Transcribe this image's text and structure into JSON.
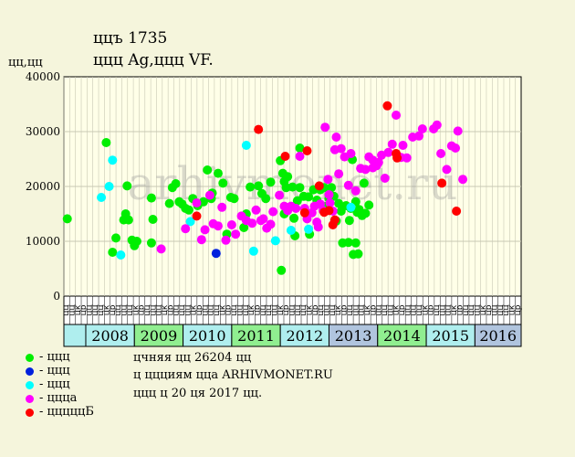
{
  "header": {
    "line1": "ццъ 1735",
    "line2": "ццц Ag,ццц VF."
  },
  "y_unit": "цц,цц",
  "info": [
    "цчняя цц 26204 цц",
    "ц ццциям цца ARHIVMONET.RU",
    "ццц ц 20 ця 2017 цц."
  ],
  "watermark": "arhivmonet.ru",
  "legend": [
    {
      "label": "- ццц",
      "color": "#00ee00"
    },
    {
      "label": "- ццц",
      "color": "#0020dd"
    },
    {
      "label": "- ццц",
      "color": "#00ffff"
    },
    {
      "label": "- цццa",
      "color": "#ff00ff"
    },
    {
      "label": "- цццццБ",
      "color": "#ff0000"
    }
  ],
  "colors": {
    "background": "#f5f5dc",
    "plot_bg": "#ffffe8",
    "grid": "#c8c8b4"
  },
  "chart_data": {
    "type": "scatter",
    "ylim": [
      0,
      40000
    ],
    "yticks": [
      0,
      10000,
      20000,
      30000,
      40000
    ],
    "xlim": [
      2007.55,
      2016.95
    ],
    "grid": true,
    "month_labels": [
      "цц",
      "цц",
      "цк",
      "цр",
      "цц",
      "цц",
      "цц",
      "цк",
      "цр",
      "цц",
      "цц",
      "цц",
      "цк",
      "цр",
      "цц",
      "цц",
      "цц",
      "цк",
      "цр",
      "цц",
      "цц",
      "цц",
      "цк",
      "цр",
      "цц",
      "цц",
      "цц",
      "цк",
      "цр",
      "цц",
      "цц",
      "цц",
      "цк",
      "цр",
      "цц",
      "цц",
      "цц",
      "цк",
      "цр",
      "цц",
      "цц",
      "цц",
      "цк",
      "цр",
      "цц",
      "цц",
      "цц",
      "цк",
      "цр",
      "цц",
      "цц",
      "цц",
      "цк",
      "цр",
      "цц",
      "цц",
      "цц",
      "цк",
      "цр",
      "цц",
      "цц",
      "цц",
      "цк",
      "цр",
      "цц",
      "цц",
      "цц",
      "цк",
      "цр",
      "цц",
      "цц",
      "цц",
      "цк",
      "цр",
      "цц",
      "цц",
      "цц",
      "цк",
      "цр"
    ],
    "years": [
      {
        "label": "2008",
        "start": 2008.0,
        "end": 2009.0,
        "color": "#afeeee"
      },
      {
        "label": "2009",
        "start": 2009.0,
        "end": 2010.0,
        "color": "#90ee90"
      },
      {
        "label": "2010",
        "start": 2010.0,
        "end": 2011.0,
        "color": "#afeeee"
      },
      {
        "label": "2011",
        "start": 2011.0,
        "end": 2012.0,
        "color": "#90ee90"
      },
      {
        "label": "2012",
        "start": 2012.0,
        "end": 2013.0,
        "color": "#afeeee"
      },
      {
        "label": "2013",
        "start": 2013.0,
        "end": 2014.0,
        "color": "#b0c4de"
      },
      {
        "label": "2014",
        "start": 2014.0,
        "end": 2015.0,
        "color": "#90ee90"
      },
      {
        "label": "2015",
        "start": 2015.0,
        "end": 2016.0,
        "color": "#afeeee"
      },
      {
        "label": "2016",
        "start": 2016.0,
        "end": 2017.0,
        "color": "#b0c4de"
      }
    ],
    "series": [
      {
        "color": "#00ee00",
        "points": [
          [
            2007.62,
            14100
          ],
          [
            2008.42,
            28000
          ],
          [
            2008.55,
            8000
          ],
          [
            2008.62,
            10600
          ],
          [
            2008.78,
            13900
          ],
          [
            2008.82,
            15000
          ],
          [
            2008.85,
            20100
          ],
          [
            2008.88,
            13900
          ],
          [
            2008.95,
            10200
          ],
          [
            2009.0,
            9200
          ],
          [
            2009.05,
            10000
          ],
          [
            2009.35,
            17900
          ],
          [
            2009.38,
            14000
          ],
          [
            2009.35,
            9700
          ],
          [
            2009.72,
            16900
          ],
          [
            2009.78,
            19800
          ],
          [
            2009.85,
            20500
          ],
          [
            2009.92,
            17200
          ],
          [
            2009.98,
            16800
          ],
          [
            2010.05,
            16000
          ],
          [
            2010.12,
            15700
          ],
          [
            2010.2,
            17800
          ],
          [
            2010.3,
            16500
          ],
          [
            2010.42,
            17200
          ],
          [
            2010.5,
            23000
          ],
          [
            2010.58,
            17800
          ],
          [
            2010.6,
            18800
          ],
          [
            2010.72,
            22400
          ],
          [
            2010.82,
            20600
          ],
          [
            2010.9,
            11300
          ],
          [
            2010.98,
            18000
          ],
          [
            2011.05,
            17800
          ],
          [
            2011.25,
            12500
          ],
          [
            2011.3,
            15000
          ],
          [
            2011.38,
            19900
          ],
          [
            2011.55,
            20100
          ],
          [
            2011.62,
            18700
          ],
          [
            2011.7,
            17800
          ],
          [
            2011.8,
            20800
          ],
          [
            2012.0,
            24700
          ],
          [
            2012.05,
            22400
          ],
          [
            2012.08,
            20900
          ],
          [
            2012.12,
            19800
          ],
          [
            2012.02,
            4700
          ],
          [
            2012.15,
            21800
          ],
          [
            2012.25,
            19900
          ],
          [
            2012.3,
            11000
          ],
          [
            2012.35,
            17400
          ],
          [
            2012.4,
            19800
          ],
          [
            2012.48,
            18200
          ],
          [
            2012.58,
            18100
          ],
          [
            2012.6,
            11300
          ],
          [
            2012.68,
            19400
          ],
          [
            2012.75,
            17500
          ],
          [
            2012.82,
            19400
          ],
          [
            2012.9,
            19800
          ],
          [
            2012.95,
            16400
          ],
          [
            2013.0,
            17800
          ],
          [
            2013.05,
            19800
          ],
          [
            2013.1,
            18200
          ],
          [
            2013.15,
            13700
          ],
          [
            2013.2,
            16900
          ],
          [
            2013.25,
            15500
          ],
          [
            2013.28,
            9700
          ],
          [
            2013.35,
            16500
          ],
          [
            2013.4,
            9800
          ],
          [
            2013.42,
            13800
          ],
          [
            2013.45,
            16000
          ],
          [
            2013.48,
            24900
          ],
          [
            2013.5,
            7600
          ],
          [
            2013.55,
            17200
          ],
          [
            2013.58,
            15300
          ],
          [
            2013.62,
            15800
          ],
          [
            2013.68,
            14700
          ],
          [
            2013.75,
            15100
          ],
          [
            2013.82,
            16600
          ],
          [
            2013.55,
            9700
          ],
          [
            2013.6,
            7700
          ],
          [
            2013.72,
            20600
          ],
          [
            2012.08,
            15000
          ],
          [
            2012.28,
            14200
          ],
          [
            2012.4,
            27000
          ]
        ]
      },
      {
        "color": "#0020dd",
        "points": [
          [
            2010.68,
            7800
          ]
        ]
      },
      {
        "color": "#00ffff",
        "points": [
          [
            2008.32,
            18000
          ],
          [
            2008.48,
            20000
          ],
          [
            2008.55,
            24800
          ],
          [
            2008.72,
            7500
          ],
          [
            2010.15,
            13600
          ],
          [
            2011.3,
            27500
          ],
          [
            2011.45,
            8200
          ],
          [
            2011.9,
            10100
          ],
          [
            2012.22,
            12000
          ],
          [
            2012.58,
            12200
          ],
          [
            2013.45,
            16200
          ]
        ]
      },
      {
        "color": "#ff00ff",
        "points": [
          [
            2009.55,
            8600
          ],
          [
            2010.05,
            12300
          ],
          [
            2010.28,
            17000
          ],
          [
            2010.38,
            10300
          ],
          [
            2010.45,
            12100
          ],
          [
            2010.55,
            18400
          ],
          [
            2010.62,
            13200
          ],
          [
            2010.72,
            12800
          ],
          [
            2010.8,
            16200
          ],
          [
            2010.88,
            10200
          ],
          [
            2011.0,
            13000
          ],
          [
            2011.08,
            11300
          ],
          [
            2011.2,
            14600
          ],
          [
            2011.3,
            13800
          ],
          [
            2011.42,
            13300
          ],
          [
            2011.5,
            15700
          ],
          [
            2011.6,
            13800
          ],
          [
            2011.65,
            14100
          ],
          [
            2011.72,
            12400
          ],
          [
            2011.8,
            13100
          ],
          [
            2011.85,
            15400
          ],
          [
            2011.98,
            18400
          ],
          [
            2012.08,
            16400
          ],
          [
            2012.15,
            15600
          ],
          [
            2012.22,
            16400
          ],
          [
            2012.32,
            16000
          ],
          [
            2012.4,
            25500
          ],
          [
            2012.5,
            16000
          ],
          [
            2012.55,
            14100
          ],
          [
            2012.65,
            15200
          ],
          [
            2012.7,
            16400
          ],
          [
            2012.78,
            12600
          ],
          [
            2012.82,
            16800
          ],
          [
            2012.88,
            15600
          ],
          [
            2012.92,
            30800
          ],
          [
            2012.98,
            21300
          ],
          [
            2013.02,
            17000
          ],
          [
            2013.08,
            15500
          ],
          [
            2013.12,
            26700
          ],
          [
            2013.15,
            29000
          ],
          [
            2013.2,
            22300
          ],
          [
            2013.25,
            26900
          ],
          [
            2013.32,
            25400
          ],
          [
            2013.4,
            20200
          ],
          [
            2013.45,
            26000
          ],
          [
            2013.55,
            19200
          ],
          [
            2013.65,
            23300
          ],
          [
            2013.75,
            23100
          ],
          [
            2013.82,
            25400
          ],
          [
            2013.9,
            23400
          ],
          [
            2013.98,
            23800
          ],
          [
            2014.02,
            24400
          ],
          [
            2014.08,
            25700
          ],
          [
            2014.15,
            21500
          ],
          [
            2014.22,
            26200
          ],
          [
            2014.3,
            27700
          ],
          [
            2014.38,
            33000
          ],
          [
            2014.42,
            25500
          ],
          [
            2014.48,
            25300
          ],
          [
            2014.52,
            27500
          ],
          [
            2014.6,
            25200
          ],
          [
            2014.72,
            29000
          ],
          [
            2014.85,
            29200
          ],
          [
            2014.92,
            30500
          ],
          [
            2015.15,
            30500
          ],
          [
            2015.22,
            31200
          ],
          [
            2015.3,
            26000
          ],
          [
            2015.42,
            23100
          ],
          [
            2015.52,
            27400
          ],
          [
            2015.6,
            27000
          ],
          [
            2015.65,
            30100
          ],
          [
            2015.75,
            21300
          ],
          [
            2013.9,
            24800
          ],
          [
            2013.0,
            18500
          ],
          [
            2012.75,
            13500
          ]
        ]
      },
      {
        "color": "#ff0000",
        "points": [
          [
            2010.28,
            14600
          ],
          [
            2011.55,
            30400
          ],
          [
            2012.1,
            25500
          ],
          [
            2012.5,
            15200
          ],
          [
            2012.55,
            26500
          ],
          [
            2012.8,
            20100
          ],
          [
            2012.9,
            15300
          ],
          [
            2013.0,
            15600
          ],
          [
            2013.08,
            13000
          ],
          [
            2013.12,
            13900
          ],
          [
            2014.2,
            34700
          ],
          [
            2014.38,
            26000
          ],
          [
            2014.4,
            25200
          ],
          [
            2015.32,
            20600
          ],
          [
            2015.62,
            15500
          ]
        ]
      }
    ]
  }
}
